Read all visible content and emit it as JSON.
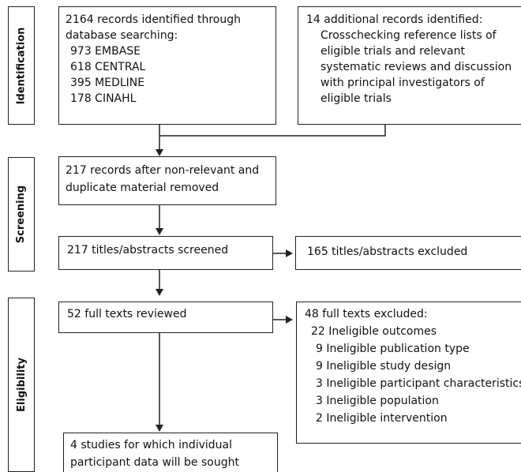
{
  "stages": {
    "identification": "Identification",
    "screening": "Screening",
    "eligibility": "Eligibility"
  },
  "identification": {
    "database_search": [
      "2164 records identified through",
      "database searching:",
      "973 EMBASE",
      "618 CENTRAL",
      "395 MEDLINE",
      "178 CINAHL"
    ],
    "additional_records": [
      "14 additional records identified:",
      "Crosschecking reference lists of",
      "eligible trials and relevant",
      "systematic reviews and discussion",
      "with principal investigators of",
      "eligible trials"
    ]
  },
  "screening": {
    "after_removal": [
      "217 records after non-relevant and",
      "duplicate material removed"
    ],
    "screened": "217 titles/abstracts screened",
    "excluded": "165 titles/abstracts excluded"
  },
  "eligibility": {
    "reviewed": "52 full texts reviewed",
    "excluded": [
      "48 full texts excluded:",
      "22 Ineligible outcomes",
      "9 Ineligible publication type",
      "9 Ineligible study design",
      "3 Ineligible participant characteristics",
      "3 Ineligible population",
      "2 Ineligible intervention"
    ]
  },
  "included": {
    "studies": [
      "4 studies for which individual",
      "participant data will be sought"
    ]
  }
}
